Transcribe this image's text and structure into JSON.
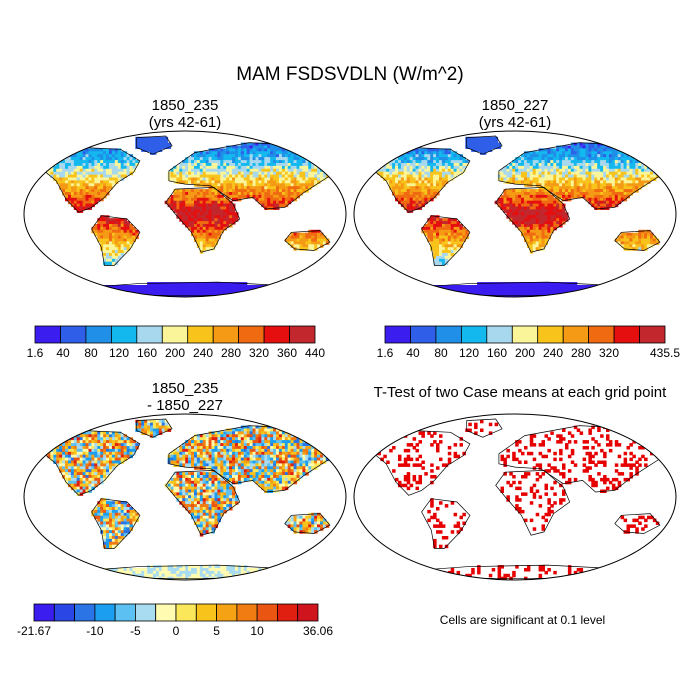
{
  "title": "MAM FSDSVDLN (W/m^2)",
  "panels": [
    {
      "id": "case1",
      "title_line1": "1850_235",
      "title_line2": "(yrs 42-61)"
    },
    {
      "id": "case2",
      "title_line1": "1850_227",
      "title_line2": "(yrs 42-61)"
    },
    {
      "id": "diff",
      "title_line1": "1850_235",
      "title_line2": "- 1850_227"
    },
    {
      "id": "ttest",
      "title_line1": "T-Test of two Case means at each grid point",
      "title_line2": ""
    }
  ],
  "note": "Cells are significant at 0.1 level",
  "chart_data": [
    {
      "type": "heatmap",
      "title": "1850_235 (yrs 42-61)",
      "colorbar": {
        "labels": [
          "1.6",
          "40",
          "80",
          "120",
          "160",
          "200",
          "240",
          "280",
          "320",
          "360",
          "440"
        ],
        "colors": [
          "#3b1df0",
          "#2f5fe8",
          "#1f8fe8",
          "#13b8ef",
          "#a8d8ee",
          "#fbf59a",
          "#f8c31a",
          "#f59a14",
          "#f06a12",
          "#e60f0f",
          "#c2272d"
        ]
      }
    },
    {
      "type": "heatmap",
      "title": "1850_227 (yrs 42-61)",
      "colorbar": {
        "labels": [
          "1.6",
          "40",
          "80",
          "120",
          "160",
          "200",
          "240",
          "280",
          "320",
          "",
          "435.5"
        ],
        "colors": [
          "#3b1df0",
          "#2f5fe8",
          "#1f8fe8",
          "#13b8ef",
          "#a8d8ee",
          "#fbf59a",
          "#f8c31a",
          "#f59a14",
          "#f06a12",
          "#e60f0f",
          "#c2272d"
        ]
      }
    },
    {
      "type": "heatmap",
      "title": "1850_235 - 1850_227",
      "colorbar": {
        "labels": [
          "-21.67",
          "",
          "",
          "-10",
          "",
          "-5",
          "",
          "0",
          "",
          "5",
          "",
          "10",
          "",
          "",
          "36.06"
        ],
        "colors": [
          "#3b1df0",
          "#2a47e6",
          "#2a74e6",
          "#1b9ef0",
          "#5cc0f2",
          "#a9dcf0",
          "#fffbb0",
          "#fbe85a",
          "#f8c31a",
          "#f5a314",
          "#f07c12",
          "#ea5512",
          "#e01f10",
          "#d0141e"
        ]
      }
    },
    {
      "type": "heatmap",
      "title": "T-Test of two Case means at each grid point",
      "colorbar": null,
      "significant_color": "#e60000"
    }
  ]
}
